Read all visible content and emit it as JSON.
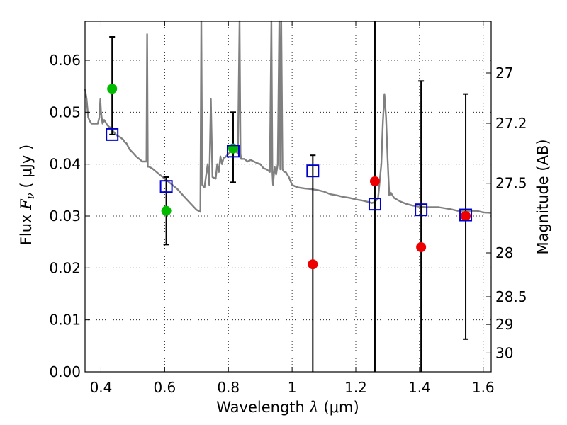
{
  "chart_data": {
    "type": "scatter",
    "xlabel_prefix": "Wavelength  ",
    "xlabel_symbol": "λ",
    "xlabel_suffix": " (μm)",
    "ylabel_prefix": "Flux  ",
    "ylabel_symbol": "F",
    "ylabel_subscript": "ν",
    "ylabel_suffix": "  ( μJy )",
    "y2label": "Magnitude (AB)",
    "xlim": [
      0.35,
      1.625
    ],
    "ylim": [
      0.0,
      0.0675
    ],
    "x_ticks": [
      0.4,
      0.6,
      0.8,
      1.0,
      1.2,
      1.4,
      1.6
    ],
    "x_tick_labels": [
      "0.4",
      "0.6",
      "0.8",
      "1",
      "1.2",
      "1.4",
      "1.6"
    ],
    "y_ticks": [
      0.0,
      0.01,
      0.02,
      0.03,
      0.04,
      0.05,
      0.06
    ],
    "y_tick_labels": [
      "0.00",
      "0.01",
      "0.02",
      "0.03",
      "0.04",
      "0.05",
      "0.06"
    ],
    "mag_ticks": [
      27,
      27.2,
      27.5,
      28,
      28.5,
      29,
      30
    ],
    "mag_tick_labels": [
      "27",
      "27.2",
      "27.5",
      "28",
      "28.5",
      "29",
      "30"
    ],
    "grid": true,
    "colors": {
      "model": "#808080",
      "model_points": "#0000cc",
      "detected": "#00bb00",
      "upper_limit": "#ee0000",
      "errorbar": "#000000"
    },
    "series": [
      {
        "name": "observed_detected",
        "marker": "circle",
        "color": "#00bb00",
        "points": [
          {
            "x": 0.435,
            "y": 0.0545,
            "err_lo": 0.0,
            "err_hi": 0.0
          },
          {
            "x": 0.605,
            "y": 0.031
          },
          {
            "x": 0.815,
            "y": 0.043
          }
        ]
      },
      {
        "name": "observed_nondetected",
        "marker": "circle",
        "color": "#ee0000",
        "points": [
          {
            "x": 1.065,
            "y": 0.0207
          },
          {
            "x": 1.26,
            "y": 0.0367
          },
          {
            "x": 1.405,
            "y": 0.024
          },
          {
            "x": 1.545,
            "y": 0.03
          }
        ]
      },
      {
        "name": "model_photometry",
        "marker": "square",
        "color": "#0000cc",
        "points": [
          {
            "x": 0.435,
            "y": 0.0457
          },
          {
            "x": 0.605,
            "y": 0.0357
          },
          {
            "x": 0.815,
            "y": 0.0425
          },
          {
            "x": 1.065,
            "y": 0.0387
          },
          {
            "x": 1.26,
            "y": 0.0323
          },
          {
            "x": 1.405,
            "y": 0.0312
          },
          {
            "x": 1.545,
            "y": 0.0302
          }
        ]
      }
    ],
    "errorbars": [
      {
        "x": 0.435,
        "lo": 0.0457,
        "hi": 0.0645
      },
      {
        "x": 0.605,
        "lo": 0.0245,
        "hi": 0.0375
      },
      {
        "x": 0.815,
        "lo": 0.0365,
        "hi": 0.05
      },
      {
        "x": 1.065,
        "lo": 0.0,
        "hi": 0.0417
      },
      {
        "x": 1.26,
        "lo": 0.0,
        "hi": 0.0675
      },
      {
        "x": 1.405,
        "lo": 0.0,
        "hi": 0.056
      },
      {
        "x": 1.545,
        "lo": 0.0063,
        "hi": 0.0535
      }
    ],
    "model_spectrum": [
      [
        0.35,
        0.0545
      ],
      [
        0.355,
        0.0525
      ],
      [
        0.36,
        0.049
      ],
      [
        0.365,
        0.0483
      ],
      [
        0.37,
        0.0478
      ],
      [
        0.375,
        0.0478
      ],
      [
        0.38,
        0.0478
      ],
      [
        0.385,
        0.0478
      ],
      [
        0.39,
        0.0478
      ],
      [
        0.395,
        0.049
      ],
      [
        0.398,
        0.0525
      ],
      [
        0.4,
        0.05
      ],
      [
        0.405,
        0.0478
      ],
      [
        0.41,
        0.0485
      ],
      [
        0.415,
        0.048
      ],
      [
        0.42,
        0.0475
      ],
      [
        0.425,
        0.0472
      ],
      [
        0.43,
        0.047
      ],
      [
        0.44,
        0.0462
      ],
      [
        0.45,
        0.0455
      ],
      [
        0.46,
        0.0452
      ],
      [
        0.47,
        0.0447
      ],
      [
        0.475,
        0.0442
      ],
      [
        0.48,
        0.044
      ],
      [
        0.49,
        0.0428
      ],
      [
        0.5,
        0.0422
      ],
      [
        0.51,
        0.0415
      ],
      [
        0.52,
        0.041
      ],
      [
        0.53,
        0.0405
      ],
      [
        0.54,
        0.0405
      ],
      [
        0.543,
        0.0405
      ],
      [
        0.545,
        0.065
      ],
      [
        0.547,
        0.0395
      ],
      [
        0.55,
        0.0395
      ],
      [
        0.56,
        0.0392
      ],
      [
        0.58,
        0.0382
      ],
      [
        0.6,
        0.0372
      ],
      [
        0.62,
        0.0362
      ],
      [
        0.64,
        0.0352
      ],
      [
        0.66,
        0.0338
      ],
      [
        0.68,
        0.0325
      ],
      [
        0.7,
        0.0312
      ],
      [
        0.712,
        0.0308
      ],
      [
        0.715,
        0.0675
      ],
      [
        0.718,
        0.036
      ],
      [
        0.725,
        0.0355
      ],
      [
        0.735,
        0.04
      ],
      [
        0.74,
        0.036
      ],
      [
        0.745,
        0.0525
      ],
      [
        0.75,
        0.0375
      ],
      [
        0.76,
        0.0372
      ],
      [
        0.765,
        0.04
      ],
      [
        0.77,
        0.0385
      ],
      [
        0.775,
        0.0415
      ],
      [
        0.78,
        0.04
      ],
      [
        0.785,
        0.0412
      ],
      [
        0.79,
        0.0413
      ],
      [
        0.8,
        0.042
      ],
      [
        0.81,
        0.0425
      ],
      [
        0.82,
        0.0428
      ],
      [
        0.83,
        0.042
      ],
      [
        0.835,
        0.0675
      ],
      [
        0.838,
        0.042
      ],
      [
        0.84,
        0.041
      ],
      [
        0.85,
        0.041
      ],
      [
        0.86,
        0.0405
      ],
      [
        0.87,
        0.0408
      ],
      [
        0.88,
        0.0405
      ],
      [
        0.89,
        0.0402
      ],
      [
        0.9,
        0.04
      ],
      [
        0.91,
        0.0392
      ],
      [
        0.92,
        0.039
      ],
      [
        0.93,
        0.0385
      ],
      [
        0.935,
        0.0675
      ],
      [
        0.938,
        0.0385
      ],
      [
        0.94,
        0.036
      ],
      [
        0.945,
        0.0395
      ],
      [
        0.95,
        0.038
      ],
      [
        0.955,
        0.04
      ],
      [
        0.96,
        0.0675
      ],
      [
        0.963,
        0.039
      ],
      [
        0.966,
        0.0675
      ],
      [
        0.97,
        0.039
      ],
      [
        0.975,
        0.0385
      ],
      [
        0.98,
        0.0385
      ],
      [
        0.99,
        0.0375
      ],
      [
        1.0,
        0.036
      ],
      [
        1.01,
        0.0357
      ],
      [
        1.02,
        0.0355
      ],
      [
        1.04,
        0.0353
      ],
      [
        1.06,
        0.0352
      ],
      [
        1.08,
        0.035
      ],
      [
        1.1,
        0.0347
      ],
      [
        1.12,
        0.0342
      ],
      [
        1.14,
        0.034
      ],
      [
        1.16,
        0.0337
      ],
      [
        1.18,
        0.0335
      ],
      [
        1.2,
        0.0332
      ],
      [
        1.22,
        0.033
      ],
      [
        1.24,
        0.0327
      ],
      [
        1.25,
        0.0325
      ],
      [
        1.26,
        0.0327
      ],
      [
        1.27,
        0.0335
      ],
      [
        1.28,
        0.04
      ],
      [
        1.285,
        0.048
      ],
      [
        1.29,
        0.0535
      ],
      [
        1.295,
        0.049
      ],
      [
        1.3,
        0.041
      ],
      [
        1.305,
        0.034
      ],
      [
        1.31,
        0.0345
      ],
      [
        1.32,
        0.0335
      ],
      [
        1.34,
        0.0328
      ],
      [
        1.36,
        0.0323
      ],
      [
        1.38,
        0.032
      ],
      [
        1.4,
        0.0318
      ],
      [
        1.42,
        0.0317
      ],
      [
        1.44,
        0.0317
      ],
      [
        1.46,
        0.0317
      ],
      [
        1.48,
        0.0315
      ],
      [
        1.5,
        0.0313
      ],
      [
        1.52,
        0.031
      ],
      [
        1.54,
        0.031
      ],
      [
        1.56,
        0.031
      ],
      [
        1.58,
        0.031
      ],
      [
        1.6,
        0.0307
      ],
      [
        1.625,
        0.0306
      ]
    ]
  }
}
